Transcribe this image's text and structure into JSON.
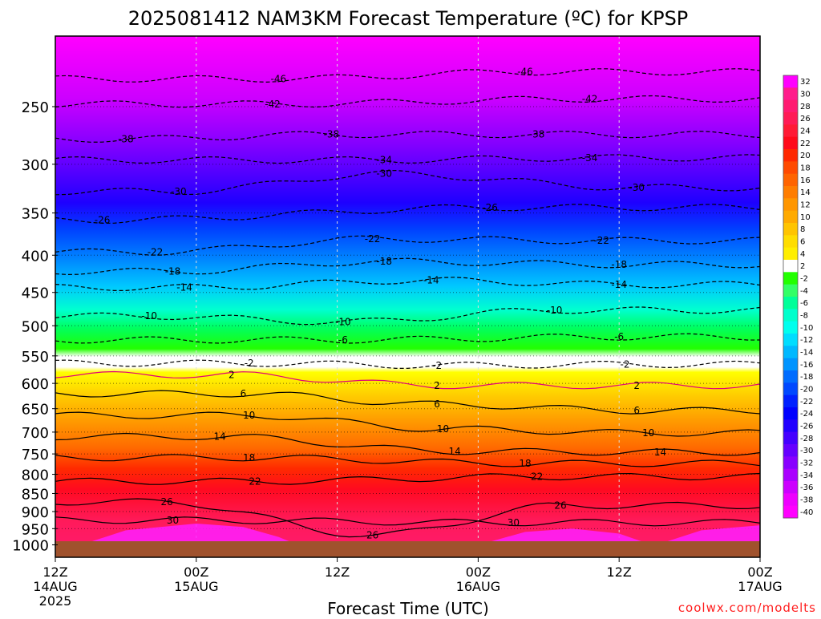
{
  "chart_data": {
    "type": "heatmap",
    "title": "2025081412 NAM3KM Forecast Temperature (ºC) for KPSP",
    "xlabel": "Forecast Time (UTC)",
    "ylabel": "",
    "credit": "coolwx.com/modelts",
    "x_ticks": [
      {
        "hour": 0,
        "line1": "12Z",
        "line2": "14AUG",
        "line3": "2025"
      },
      {
        "hour": 12,
        "line1": "00Z",
        "line2": "15AUG",
        "line3": ""
      },
      {
        "hour": 24,
        "line1": "12Z",
        "line2": "",
        "line3": ""
      },
      {
        "hour": 36,
        "line1": "00Z",
        "line2": "16AUG",
        "line3": ""
      },
      {
        "hour": 48,
        "line1": "12Z",
        "line2": "",
        "line3": ""
      },
      {
        "hour": 60,
        "line1": "00Z",
        "line2": "17AUG",
        "line3": ""
      }
    ],
    "x_range_hours": [
      0,
      60
    ],
    "y_ticks": [
      250,
      300,
      350,
      400,
      450,
      500,
      550,
      600,
      650,
      700,
      750,
      800,
      850,
      900,
      950,
      1000
    ],
    "y_range_hPa": [
      200,
      1040
    ],
    "y_scale": "log-pressure (inverted)",
    "ground_pressure_hPa": 990,
    "colorbar": {
      "labels": [
        "32",
        "30",
        "28",
        "26",
        "24",
        "22",
        "20",
        "18",
        "16",
        "14",
        "12",
        "10",
        "8",
        "6",
        "4",
        "2",
        "-2",
        "-4",
        "-6",
        "-8",
        "-10",
        "-12",
        "-14",
        "-16",
        "-18",
        "-20",
        "-22",
        "-24",
        "-26",
        "-28",
        "-30",
        "-32",
        "-34",
        "-36",
        "-38",
        "-40"
      ],
      "colors": [
        "#ff00ff",
        "#ff1c8c",
        "#ff1a70",
        "#ff1a55",
        "#ff1a35",
        "#ff0a1a",
        "#ff2800",
        "#ff4a00",
        "#ff6400",
        "#ff7d00",
        "#ff9600",
        "#ffaa00",
        "#ffc400",
        "#ffdd00",
        "#ffee00",
        "#ffffff",
        "#22ff00",
        "#33ff66",
        "#00ff99",
        "#00ffcc",
        "#00ffee",
        "#00ddff",
        "#00b8ff",
        "#0094ff",
        "#006cff",
        "#0048ff",
        "#0020ff",
        "#0000ff",
        "#2200ff",
        "#4400ff",
        "#6600ff",
        "#8800ff",
        "#aa00ff",
        "#cc00ff",
        "#ee00ff",
        "#ff00ff"
      ]
    },
    "contours": [
      {
        "value": 30,
        "labels": [
          {
            "hour": 10,
            "hPa": 925
          },
          {
            "hour": 39,
            "hPa": 932
          }
        ]
      },
      {
        "value": 26,
        "labels": [
          {
            "hour": 9.5,
            "hPa": 873
          },
          {
            "hour": 43,
            "hPa": 883
          },
          {
            "hour": 27,
            "hPa": 970
          }
        ]
      },
      {
        "value": 22,
        "labels": [
          {
            "hour": 17,
            "hPa": 818
          },
          {
            "hour": 41,
            "hPa": 806
          }
        ]
      },
      {
        "value": 18,
        "labels": [
          {
            "hour": 16.5,
            "hPa": 759
          },
          {
            "hour": 40,
            "hPa": 773
          }
        ]
      },
      {
        "value": 14,
        "labels": [
          {
            "hour": 14,
            "hPa": 710
          },
          {
            "hour": 34,
            "hPa": 744
          },
          {
            "hour": 51.5,
            "hPa": 746
          }
        ]
      },
      {
        "value": 10,
        "labels": [
          {
            "hour": 16.5,
            "hPa": 664
          },
          {
            "hour": 33,
            "hPa": 693
          },
          {
            "hour": 50.5,
            "hPa": 702
          }
        ]
      },
      {
        "value": 6,
        "labels": [
          {
            "hour": 16,
            "hPa": 620
          },
          {
            "hour": 32.5,
            "hPa": 641
          },
          {
            "hour": 49.5,
            "hPa": 654
          }
        ]
      },
      {
        "value": 2,
        "labels": [
          {
            "hour": 15,
            "hPa": 584
          },
          {
            "hour": 32.5,
            "hPa": 604
          },
          {
            "hour": 49.5,
            "hPa": 604
          }
        ]
      },
      {
        "value": -2,
        "labels": [
          {
            "hour": 16.5,
            "hPa": 563
          },
          {
            "hour": 32.5,
            "hPa": 567
          },
          {
            "hour": 48.5,
            "hPa": 565
          }
        ]
      },
      {
        "value": -6,
        "labels": [
          {
            "hour": 24.5,
            "hPa": 523
          },
          {
            "hour": 48,
            "hPa": 518
          }
        ]
      },
      {
        "value": -10,
        "labels": [
          {
            "hour": 8,
            "hPa": 485
          },
          {
            "hour": 24.5,
            "hPa": 494
          },
          {
            "hour": 42.5,
            "hPa": 476
          }
        ]
      },
      {
        "value": -14,
        "labels": [
          {
            "hour": 11,
            "hPa": 443
          },
          {
            "hour": 32,
            "hPa": 433
          },
          {
            "hour": 48,
            "hPa": 439
          }
        ]
      },
      {
        "value": -18,
        "labels": [
          {
            "hour": 10,
            "hPa": 421
          },
          {
            "hour": 28,
            "hPa": 408
          },
          {
            "hour": 48,
            "hPa": 412
          }
        ]
      },
      {
        "value": -22,
        "labels": [
          {
            "hour": 8.5,
            "hPa": 396
          },
          {
            "hour": 27,
            "hPa": 380
          },
          {
            "hour": 46.5,
            "hPa": 382
          }
        ]
      },
      {
        "value": -26,
        "labels": [
          {
            "hour": 4,
            "hPa": 358
          },
          {
            "hour": 37,
            "hPa": 344
          }
        ]
      },
      {
        "value": -30,
        "labels": [
          {
            "hour": 10.5,
            "hPa": 327
          },
          {
            "hour": 28,
            "hPa": 309
          },
          {
            "hour": 49.5,
            "hPa": 323
          }
        ]
      },
      {
        "value": -34,
        "labels": [
          {
            "hour": 28,
            "hPa": 296
          },
          {
            "hour": 45.5,
            "hPa": 294
          }
        ]
      },
      {
        "value": -38,
        "labels": [
          {
            "hour": 6,
            "hPa": 277
          },
          {
            "hour": 23.5,
            "hPa": 273
          },
          {
            "hour": 41,
            "hPa": 273
          }
        ]
      },
      {
        "value": -42,
        "labels": [
          {
            "hour": 18.5,
            "hPa": 248
          },
          {
            "hour": 45.5,
            "hPa": 244
          }
        ]
      },
      {
        "value": -46,
        "labels": [
          {
            "hour": 19,
            "hPa": 229
          },
          {
            "hour": 40,
            "hPa": 224
          }
        ]
      }
    ]
  }
}
